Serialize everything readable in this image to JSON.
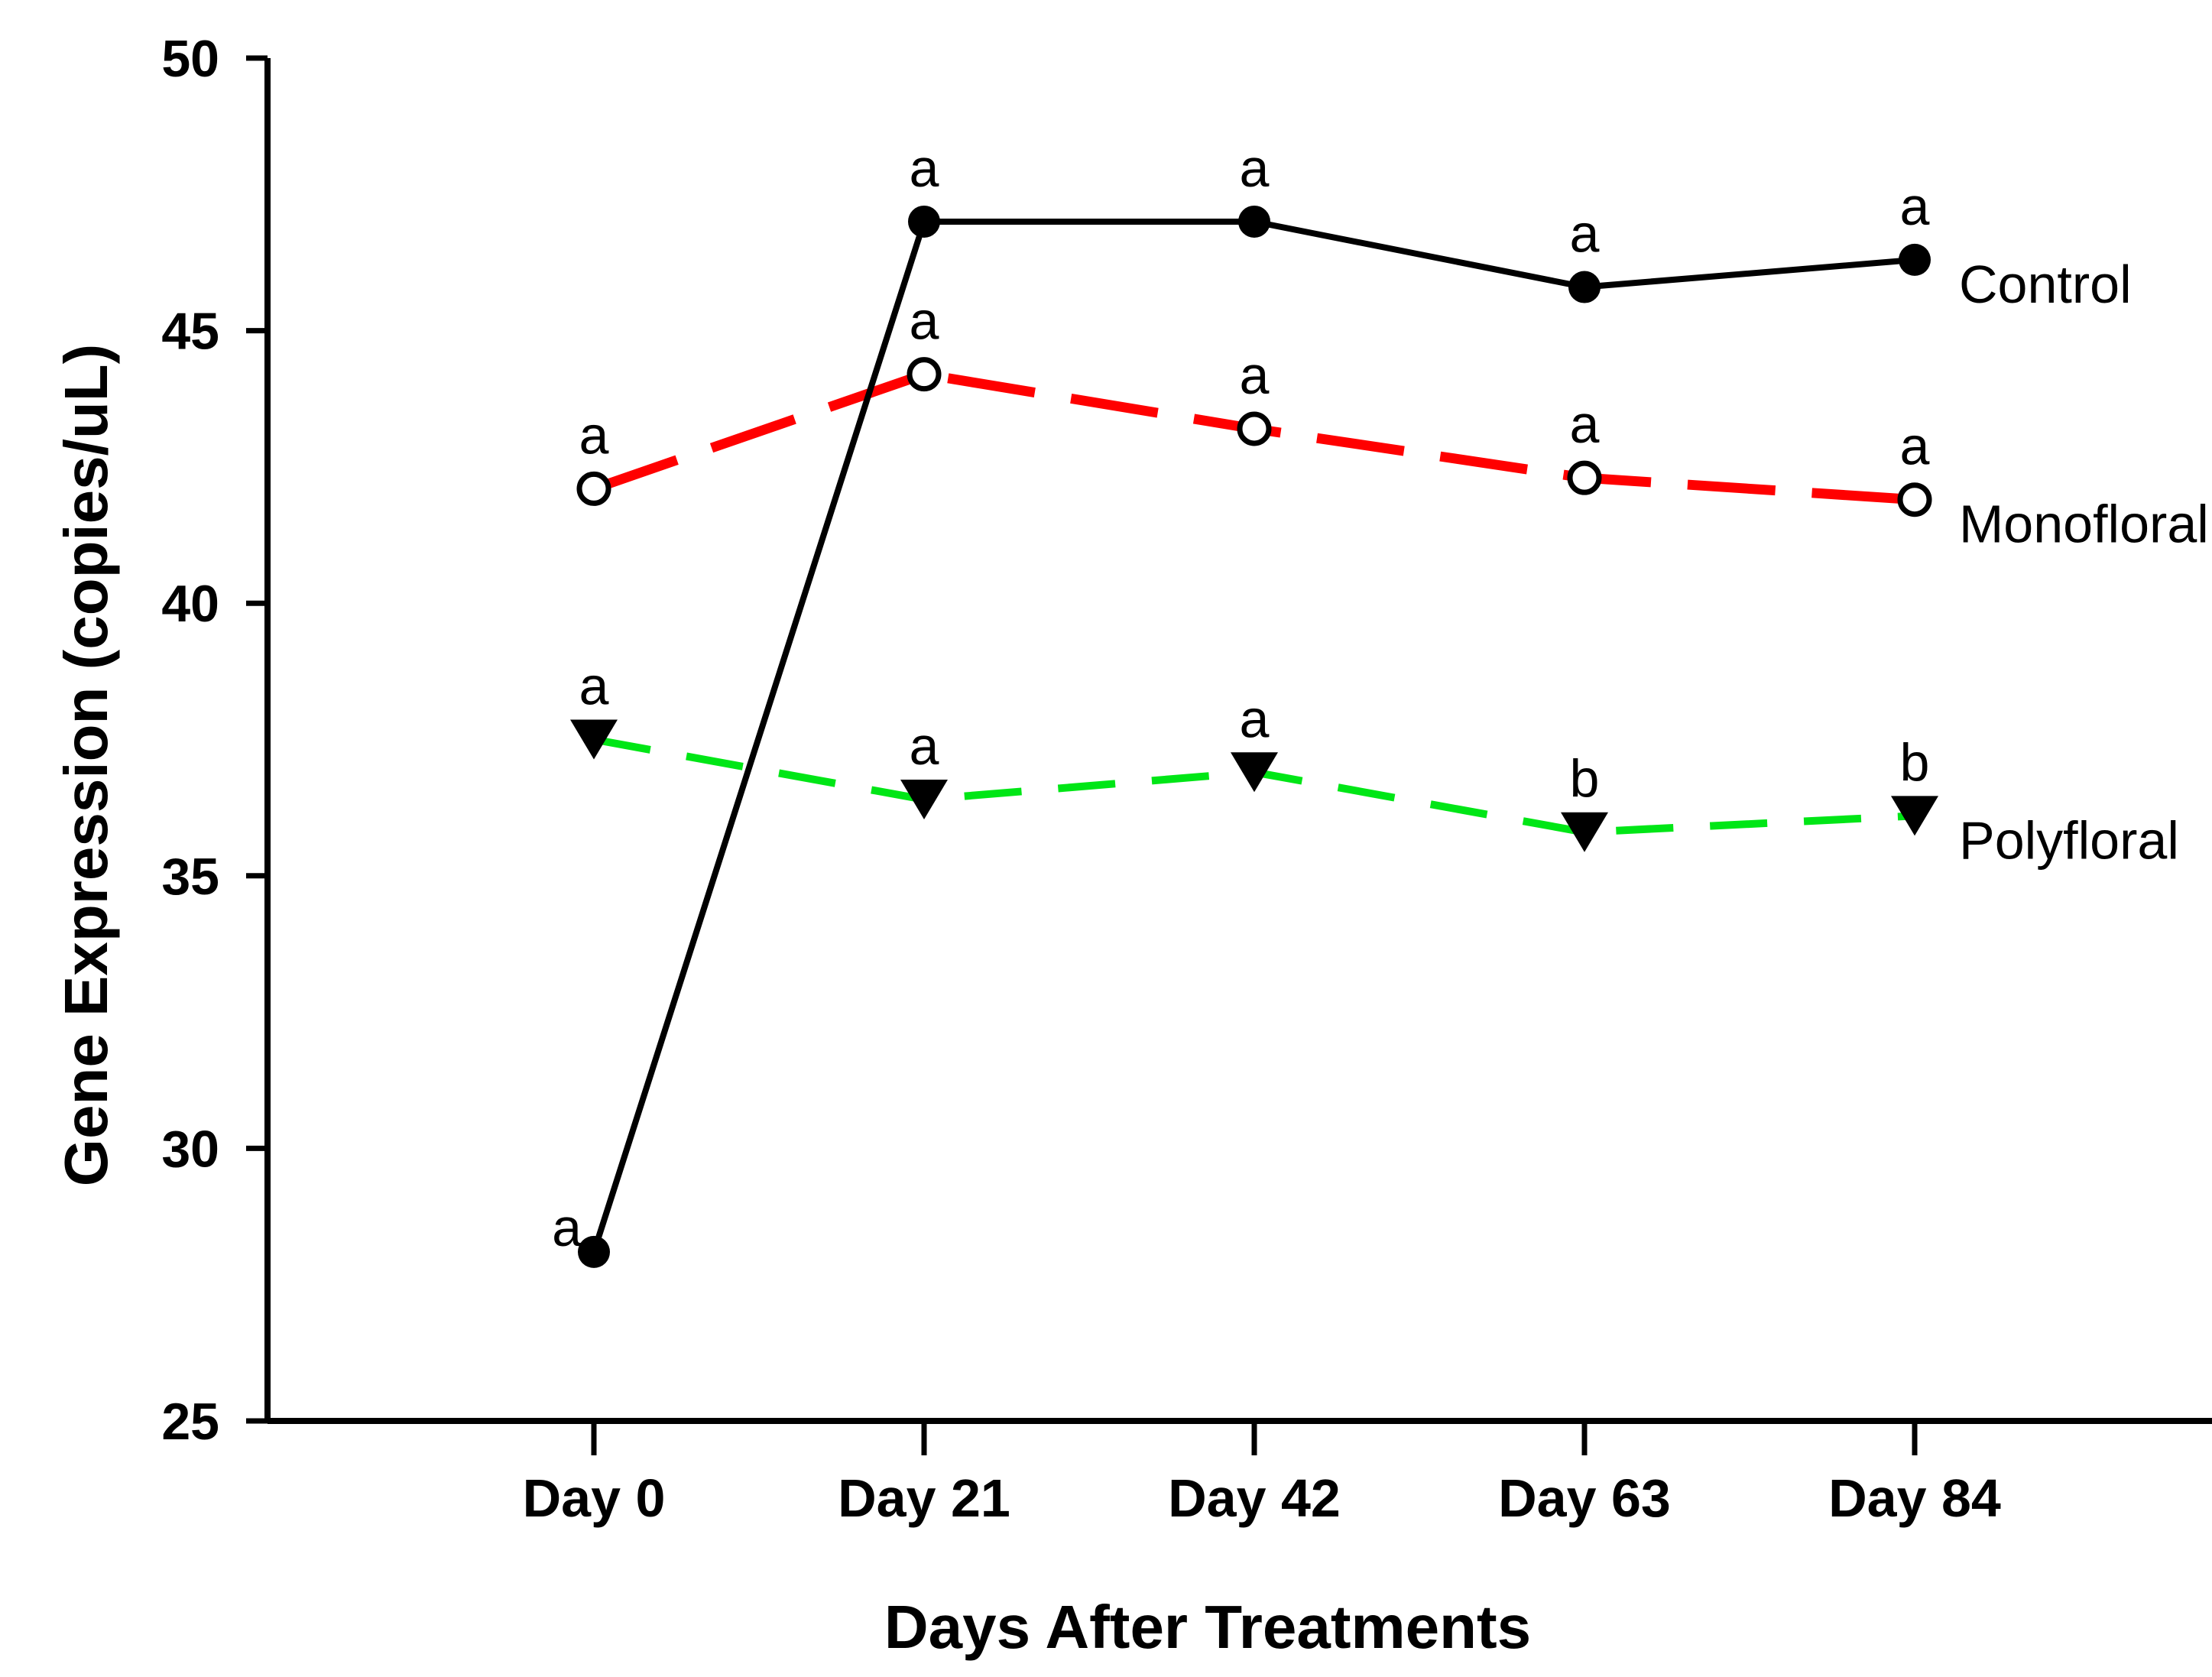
{
  "figure": {
    "background": "#ffffff",
    "text_color": "#000000"
  },
  "chart_data": {
    "type": "line",
    "title": "",
    "xlabel": "Days After Treatments",
    "ylabel": "Gene Expression (copies/uL)",
    "categories": [
      "Day 0",
      "Day 21",
      "Day 42",
      "Day 63",
      "Day 84"
    ],
    "ylim": [
      25,
      50
    ],
    "yticks": [
      25,
      30,
      35,
      40,
      45,
      50
    ],
    "grid": false,
    "legend_position": "inline-right-of-last-point",
    "series": [
      {
        "name": "Control",
        "color": "#000000",
        "line_style": "solid",
        "marker": "filled-circle",
        "marker_color": "#000000",
        "values": [
          28.1,
          47.0,
          47.0,
          45.8,
          46.3
        ],
        "point_labels": [
          "a",
          "a",
          "a",
          "a",
          "a"
        ],
        "point_label_positions": [
          "left",
          "above",
          "above",
          "above",
          "above"
        ]
      },
      {
        "name": "Monofloral",
        "color": "#ff0000",
        "line_style": "long-dash",
        "marker": "open-circle",
        "marker_color": "#000000",
        "values": [
          42.1,
          44.2,
          43.2,
          42.3,
          41.9
        ],
        "point_labels": [
          "a",
          "a",
          "a",
          "a",
          "a"
        ],
        "point_label_positions": [
          "above",
          "above",
          "above",
          "above",
          "above"
        ]
      },
      {
        "name": "Polyfloral",
        "color": "#00e616",
        "line_style": "dash",
        "marker": "filled-triangle-down",
        "marker_color": "#000000",
        "values": [
          37.5,
          36.4,
          36.9,
          35.8,
          36.1
        ],
        "point_labels": [
          "a",
          "a",
          "a",
          "b",
          "b"
        ],
        "point_label_positions": [
          "above",
          "above",
          "above",
          "above",
          "above"
        ]
      }
    ]
  }
}
